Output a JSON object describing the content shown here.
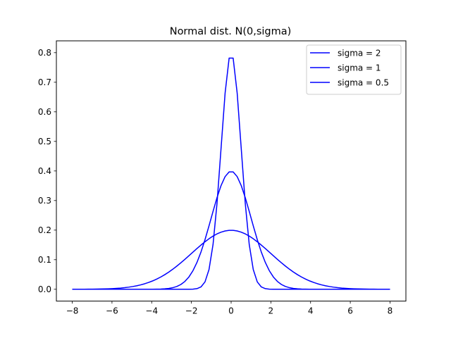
{
  "chart_data": {
    "type": "line",
    "title": "Normal dist. N(0,sigma)",
    "xlabel": "",
    "ylabel": "",
    "xlim": [
      -8.8,
      8.8
    ],
    "ylim": [
      -0.04,
      0.84
    ],
    "x_ticks": [
      -8,
      -6,
      -4,
      -2,
      0,
      2,
      4,
      6,
      8
    ],
    "x_tick_labels": [
      "−8",
      "−6",
      "−4",
      "−2",
      "0",
      "2",
      "4",
      "6",
      "8"
    ],
    "y_ticks": [
      0.0,
      0.1,
      0.2,
      0.3,
      0.4,
      0.5,
      0.6,
      0.7,
      0.8
    ],
    "y_tick_labels": [
      "0.0",
      "0.1",
      "0.2",
      "0.3",
      "0.4",
      "0.5",
      "0.6",
      "0.7",
      "0.8"
    ],
    "x_range": [
      -8,
      8
    ],
    "num_points": 80,
    "grid": false,
    "legend_position": "upper right",
    "series": [
      {
        "name": "sigma = 2",
        "sigma": 2,
        "mean": 0,
        "color": "#0000ff"
      },
      {
        "name": "sigma = 1",
        "sigma": 1,
        "mean": 0,
        "color": "#0000ff"
      },
      {
        "name": "sigma = 0.5",
        "sigma": 0.5,
        "mean": 0,
        "color": "#0000ff"
      }
    ]
  }
}
